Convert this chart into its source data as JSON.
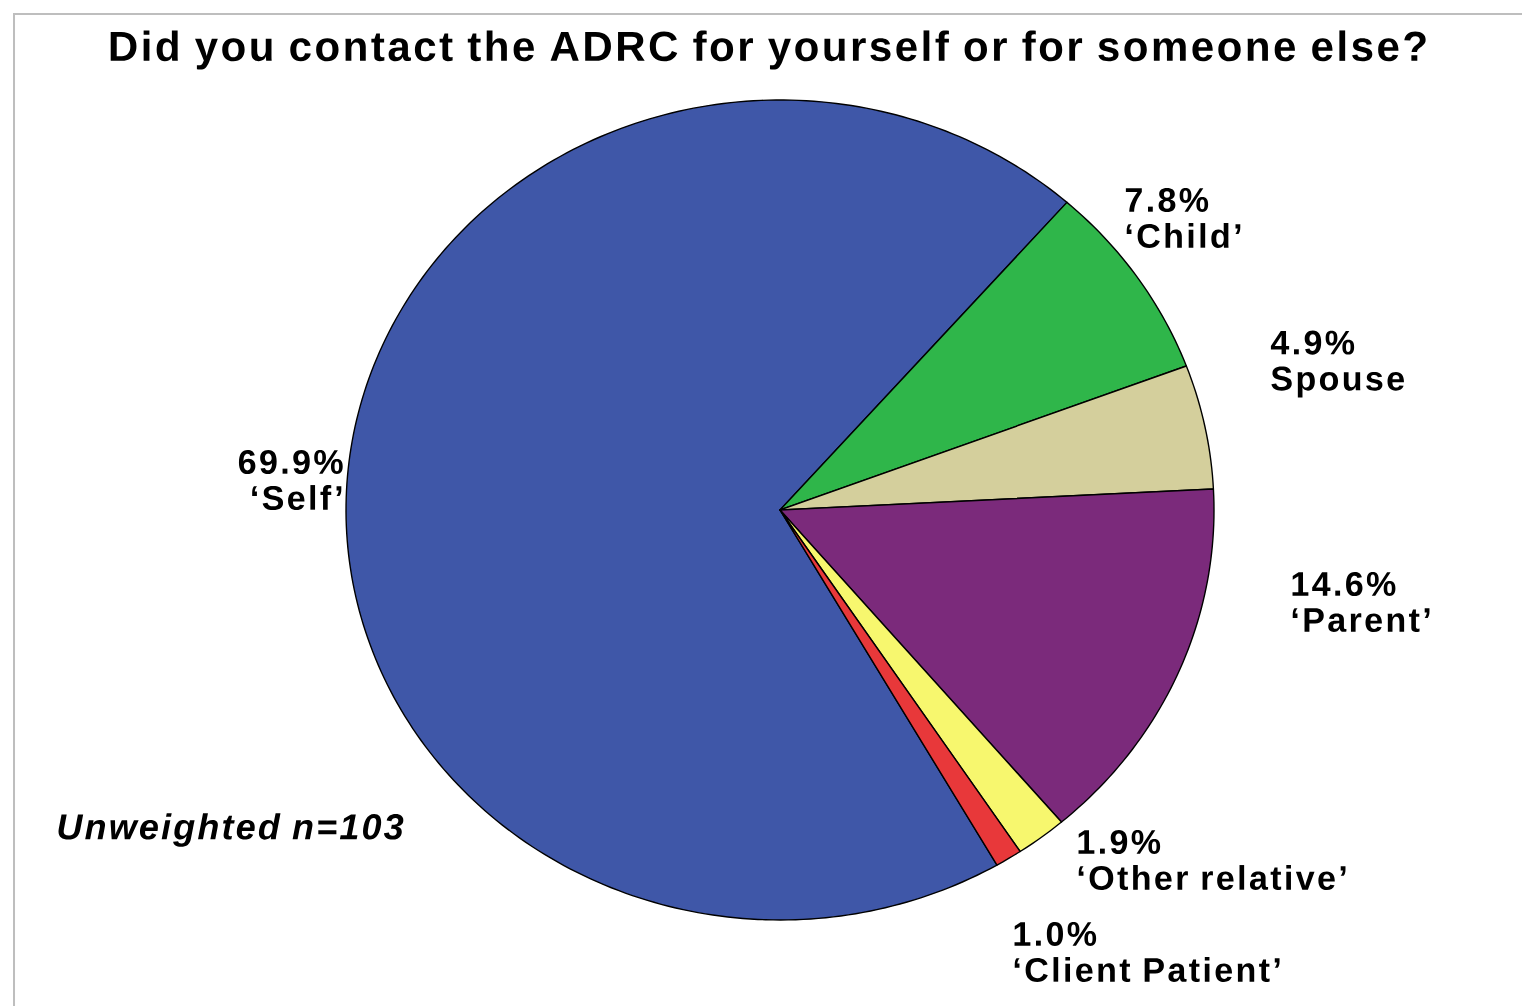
{
  "chart_data": {
    "type": "pie",
    "title": "Did you contact the ADRC for yourself or for someone else?",
    "categories": [
      "‘Self’",
      "‘Child’",
      "Spouse",
      "‘Parent’",
      "‘Other relative’",
      "‘Client Patient’"
    ],
    "values": [
      69.9,
      7.8,
      4.9,
      14.6,
      1.9,
      1.0
    ],
    "value_labels": [
      "69.9%",
      "7.8%",
      "4.9%",
      "14.6%",
      "1.9%",
      "1.0%"
    ],
    "colors": [
      "#3f57a8",
      "#2fb64a",
      "#d4cf9c",
      "#7b2a7b",
      "#f7f76e",
      "#e8383a"
    ],
    "annotations": [
      "Unweighted n=103"
    ]
  }
}
